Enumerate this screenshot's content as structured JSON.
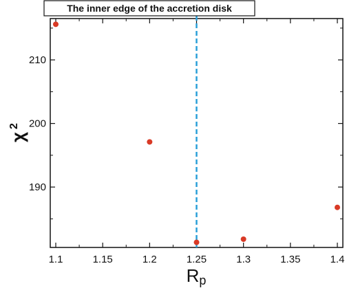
{
  "chart_data": {
    "type": "scatter",
    "title": "",
    "xlabel": "R",
    "xlabel_subscript": "p",
    "ylabel": "χ",
    "ylabel_superscript": "2",
    "xlim": [
      1.1,
      1.4
    ],
    "ylim": [
      180.5,
      216.5
    ],
    "x_ticks": [
      1.1,
      1.15,
      1.2,
      1.25,
      1.3,
      1.35,
      1.4
    ],
    "x_tick_labels": [
      "1.1",
      "1.15",
      "1.2",
      "1.25",
      "1.3",
      "1.35",
      "1.4"
    ],
    "y_ticks": [
      190,
      200,
      210
    ],
    "y_tick_labels": [
      "190",
      "200",
      "210"
    ],
    "grid": false,
    "legend": "none",
    "series": [
      {
        "color": "#d93a26",
        "points": [
          {
            "x": 1.1,
            "y": 215.6
          },
          {
            "x": 1.2,
            "y": 197.1
          },
          {
            "x": 1.25,
            "y": 181.3
          },
          {
            "x": 1.3,
            "y": 181.8
          },
          {
            "x": 1.4,
            "y": 186.8
          }
        ]
      }
    ],
    "annotations": [
      {
        "type": "vline",
        "x": 1.25,
        "style": "dashed",
        "color": "#2a9fd8",
        "label": "The inner edge of the accretion disk"
      }
    ]
  }
}
